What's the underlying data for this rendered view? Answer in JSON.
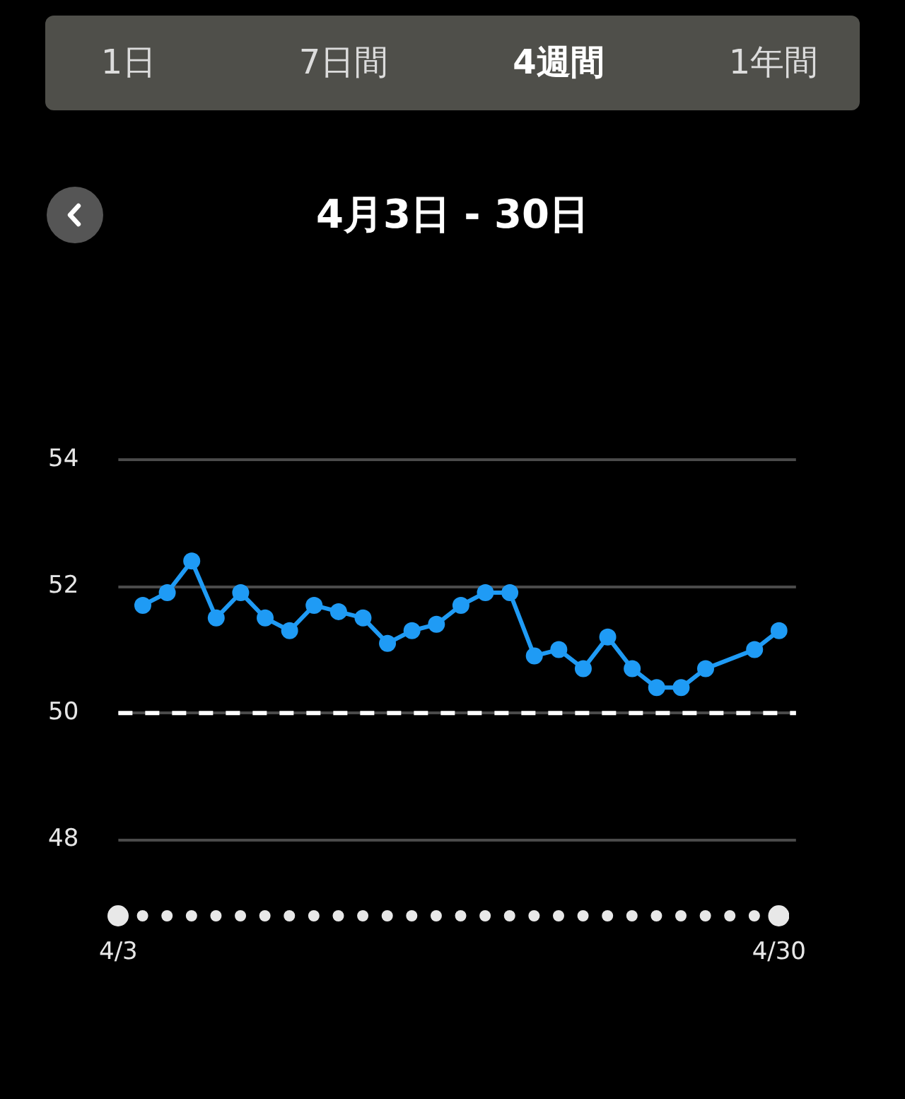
{
  "chart_data": {
    "type": "line",
    "title": "4月3日 - 30日",
    "annotations": [
      "1日",
      "7日間",
      "4週間",
      "1年間"
    ],
    "categories": [
      "4/3",
      null,
      null,
      null,
      null,
      null,
      null,
      null,
      null,
      null,
      null,
      null,
      null,
      null,
      null,
      null,
      null,
      null,
      null,
      null,
      null,
      null,
      null,
      null,
      null,
      null,
      null,
      "4/30"
    ],
    "series": [
      {
        "color": "#1f9bf5",
        "values": [
          null,
          51.7,
          51.9,
          52.4,
          51.5,
          51.9,
          51.5,
          51.3,
          51.7,
          51.6,
          51.5,
          51.1,
          51.3,
          51.4,
          51.7,
          51.9,
          51.9,
          50.9,
          51.0,
          50.7,
          51.2,
          50.7,
          50.4,
          50.4,
          50.7,
          null,
          51.0,
          51.3
        ]
      }
    ],
    "ylim": [
      48,
      54
    ],
    "yticks": [
      48,
      50,
      52,
      54
    ],
    "grid": "y",
    "marker": "circle",
    "line_style": "solid",
    "ref_lines": [
      {
        "axis": "y",
        "value": 50,
        "color": "#ffffff",
        "line_style": "dashed"
      }
    ]
  }
}
